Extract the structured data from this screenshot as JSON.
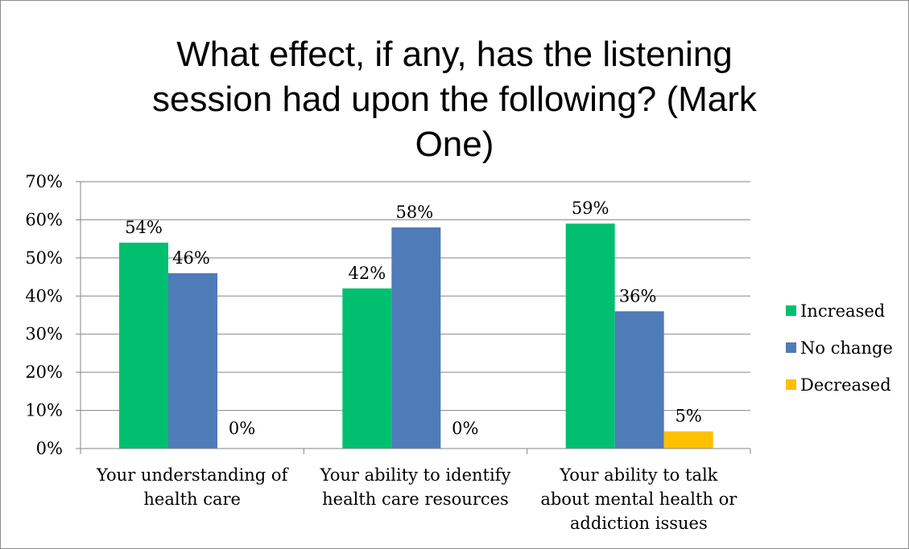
{
  "chart_data": {
    "type": "bar",
    "title": "What effect, if any, has the listening session had upon the following? (Mark One)",
    "title_lines": [
      "What effect, if any, has the listening",
      "session had upon the following? (Mark",
      "One)"
    ],
    "categories": [
      "Your understanding of health care",
      "Your ability to identify health care resources",
      "Your ability to talk about mental health or addiction issues"
    ],
    "category_lines": [
      [
        "Your understanding of",
        "health care"
      ],
      [
        "Your ability to identify",
        "health care resources"
      ],
      [
        "Your ability to talk",
        "about mental health or",
        "addiction issues"
      ]
    ],
    "series": [
      {
        "name": "Increased",
        "values": [
          54,
          42,
          59
        ],
        "labels": [
          "54%",
          "42%",
          "59%"
        ],
        "color": "#00c070"
      },
      {
        "name": "No change",
        "values": [
          46,
          58,
          36
        ],
        "labels": [
          "46%",
          "58%",
          "36%"
        ],
        "color": "#4f7bb8"
      },
      {
        "name": "Decreased",
        "values": [
          0,
          0,
          4.5
        ],
        "labels": [
          "0%",
          "0%",
          "5%"
        ],
        "color": "#ffc000"
      }
    ],
    "ylim": [
      0,
      70
    ],
    "yticks": [
      0,
      10,
      20,
      30,
      40,
      50,
      60,
      70
    ],
    "ytick_labels": [
      "0%",
      "10%",
      "20%",
      "30%",
      "40%",
      "50%",
      "60%",
      "70%"
    ],
    "grid": true,
    "legend": "right",
    "xlabel": "",
    "ylabel": ""
  }
}
